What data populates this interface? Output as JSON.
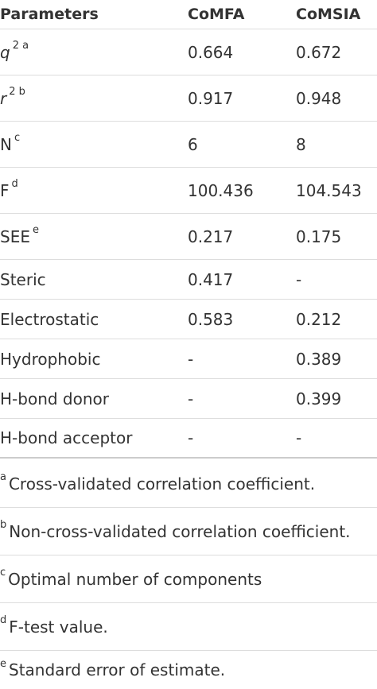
{
  "table": {
    "header": [
      "Parameters",
      "CoMFA",
      "CoMSIA"
    ],
    "rows": [
      {
        "param": "q",
        "italic": true,
        "sup": "2 a",
        "comfa": "0.664",
        "comsia": "0.672"
      },
      {
        "param": "r",
        "italic": true,
        "sup": "2 b",
        "comfa": "0.917",
        "comsia": "0.948"
      },
      {
        "param": "N",
        "sup": "c",
        "comfa": "6",
        "comsia": "8"
      },
      {
        "param": "F",
        "sup": "d",
        "comfa": "100.436",
        "comsia": "104.543"
      },
      {
        "param": "SEE",
        "sup": "e",
        "comfa": "0.217",
        "comsia": "0.175"
      },
      {
        "param": "Steric",
        "comfa": "0.417",
        "comsia": "-"
      },
      {
        "param": "Electrostatic",
        "comfa": "0.583",
        "comsia": "0.212"
      },
      {
        "param": "Hydrophobic",
        "comfa": "-",
        "comsia": "0.389"
      },
      {
        "param": "H-bond donor",
        "comfa": "-",
        "comsia": "0.399"
      },
      {
        "param": "H-bond acceptor",
        "comfa": "-",
        "comsia": "-"
      }
    ],
    "footnotes": [
      {
        "mark": "a",
        "text": "Cross-validated correlation coefficient."
      },
      {
        "mark": "b",
        "text": "Non-cross-validated correlation coefficient."
      },
      {
        "mark": "c",
        "text": "Optimal number of components"
      },
      {
        "mark": "d",
        "text": "F-test value."
      },
      {
        "mark": "e",
        "text": "Standard error of estimate."
      }
    ]
  }
}
